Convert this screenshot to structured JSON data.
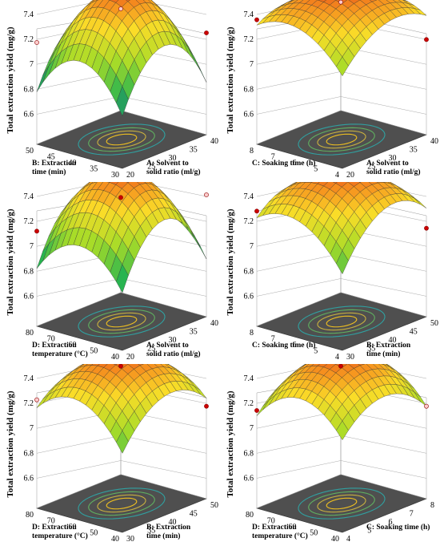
{
  "chart_data": [
    {
      "type": "surface",
      "zlabel": "Total extraction yield (mg/g)",
      "zticks": [
        "6.6",
        "6.8",
        "7",
        "7.2",
        "7.4"
      ],
      "zlim": [
        6.5,
        7.4
      ],
      "x": {
        "label": [
          "A: Solvent to",
          "solid ratio (ml/g)"
        ],
        "ticks": [
          "20",
          "25",
          "30",
          "35",
          "40"
        ],
        "lim": [
          20,
          40
        ]
      },
      "y": {
        "label": [
          "B: Extraction",
          "time (min)"
        ],
        "ticks": [
          "30",
          "35",
          "40",
          "45",
          "50"
        ],
        "lim": [
          30,
          50
        ]
      },
      "surface": {
        "center": 7.3,
        "a": 0.4,
        "b": 0.32,
        "c": 0.0
      },
      "points": [
        {
          "x": 30,
          "y": 40,
          "z": 7.33,
          "color": "#cc0000"
        },
        {
          "x": 20,
          "y": 50,
          "z": 6.95,
          "color": "#ffcccc"
        },
        {
          "x": 40,
          "y": 30,
          "z": 6.95,
          "color": "#cc0000"
        },
        {
          "x": 40,
          "y": 50,
          "z": 6.95,
          "color": "#ffcccc"
        }
      ]
    },
    {
      "type": "surface",
      "zlabel": "Total extraction yield (mg/g)",
      "zticks": [
        "6.6",
        "6.8",
        "7",
        "7.2",
        "7.4"
      ],
      "zlim": [
        6.5,
        7.4
      ],
      "x": {
        "label": [
          "A: Solvent to",
          "solid ratio (ml/g)"
        ],
        "ticks": [
          "20",
          "25",
          "30",
          "35",
          "40"
        ],
        "lim": [
          20,
          40
        ]
      },
      "y": {
        "label": [
          "C: Soaking time (h)"
        ],
        "ticks": [
          "4",
          "5",
          "6",
          "7",
          "8"
        ],
        "lim": [
          4,
          8
        ]
      },
      "surface": {
        "center": 7.3,
        "a": 0.16,
        "b": 0.16,
        "c": 0.1
      },
      "points": [
        {
          "x": 30,
          "y": 6,
          "z": 7.33,
          "color": "#cc0000"
        },
        {
          "x": 20,
          "y": 8,
          "z": 7.12,
          "color": "#cc0000"
        },
        {
          "x": 40,
          "y": 4,
          "z": 6.9,
          "color": "#cc0000"
        },
        {
          "x": 40,
          "y": 8,
          "z": 7.0,
          "color": "#ffcccc"
        }
      ]
    },
    {
      "type": "surface",
      "zlabel": "Total extraction yield (mg/g)",
      "zticks": [
        "6.6",
        "6.8",
        "7",
        "7.2",
        "7.4"
      ],
      "zlim": [
        6.5,
        7.4
      ],
      "x": {
        "label": [
          "A: Solvent to",
          "solid ratio (ml/g)"
        ],
        "ticks": [
          "20",
          "25",
          "30",
          "35",
          "40"
        ],
        "lim": [
          20,
          40
        ]
      },
      "y": {
        "label": [
          "D: Extraction",
          "temperature (°C)"
        ],
        "ticks": [
          "40",
          "50",
          "60",
          "70",
          "80"
        ],
        "lim": [
          40,
          80
        ]
      },
      "surface": {
        "center": 7.3,
        "a": 0.42,
        "b": 0.26,
        "c": 0.0
      },
      "points": [
        {
          "x": 30,
          "y": 60,
          "z": 7.33,
          "color": "#cc0000"
        },
        {
          "x": 20,
          "y": 80,
          "z": 6.9,
          "color": "#cc0000"
        },
        {
          "x": 40,
          "y": 40,
          "z": 7.1,
          "color": "#ffcccc"
        },
        {
          "x": 40,
          "y": 80,
          "z": 6.9,
          "color": "#cc0000"
        }
      ]
    },
    {
      "type": "surface",
      "zlabel": "Total extraction yield (mg/g)",
      "zticks": [
        "6.6",
        "6.8",
        "7",
        "7.2",
        "7.4"
      ],
      "zlim": [
        6.5,
        7.4
      ],
      "x": {
        "label": [
          "B: Extraction",
          "time (min)"
        ],
        "ticks": [
          "30",
          "35",
          "40",
          "45",
          "50"
        ],
        "lim": [
          30,
          50
        ]
      },
      "y": {
        "label": [
          "C: Soaking time (h)"
        ],
        "ticks": [
          "4",
          "5",
          "6",
          "7",
          "8"
        ],
        "lim": [
          4,
          8
        ]
      },
      "surface": {
        "center": 7.3,
        "a": 0.24,
        "b": 0.18,
        "c": 0.12
      },
      "points": [
        {
          "x": 40,
          "y": 6,
          "z": 7.33,
          "color": "#cc0000"
        },
        {
          "x": 30,
          "y": 8,
          "z": 7.05,
          "color": "#cc0000"
        },
        {
          "x": 50,
          "y": 4,
          "z": 6.85,
          "color": "#cc0000"
        },
        {
          "x": 50,
          "y": 8,
          "z": 7.05,
          "color": "#cc0000"
        }
      ]
    },
    {
      "type": "surface",
      "zlabel": "Total extraction yield (mg/g)",
      "zticks": [
        "6.6",
        "6.8",
        "7",
        "7.2",
        "7.4"
      ],
      "zlim": [
        6.5,
        7.4
      ],
      "x": {
        "label": [
          "B: Extraction",
          "time (min)"
        ],
        "ticks": [
          "30",
          "35",
          "40",
          "45",
          "50"
        ],
        "lim": [
          30,
          50
        ]
      },
      "y": {
        "label": [
          "D: Extraction",
          "temperature (°C)"
        ],
        "ticks": [
          "40",
          "50",
          "60",
          "70",
          "80"
        ],
        "lim": [
          40,
          80
        ]
      },
      "surface": {
        "center": 7.3,
        "a": 0.22,
        "b": 0.22,
        "c": 0.08
      },
      "points": [
        {
          "x": 40,
          "y": 60,
          "z": 7.33,
          "color": "#cc0000"
        },
        {
          "x": 30,
          "y": 80,
          "z": 7.0,
          "color": "#ffcccc"
        },
        {
          "x": 50,
          "y": 40,
          "z": 6.88,
          "color": "#cc0000"
        },
        {
          "x": 50,
          "y": 80,
          "z": 7.0,
          "color": "#cc0000"
        }
      ]
    },
    {
      "type": "surface",
      "zlabel": "Total extraction yield (mg/g)",
      "zticks": [
        "6.6",
        "6.8",
        "7",
        "7.2",
        "7.4"
      ],
      "zlim": [
        6.5,
        7.4
      ],
      "x": {
        "label": [
          "C: Soaking time (h)"
        ],
        "ticks": [
          "4",
          "5",
          "6",
          "7",
          "8"
        ],
        "lim": [
          4,
          8
        ]
      },
      "y": {
        "label": [
          "D: Extraction",
          "temperature (°C)"
        ],
        "ticks": [
          "40",
          "50",
          "60",
          "70",
          "80"
        ],
        "lim": [
          40,
          80
        ]
      },
      "surface": {
        "center": 7.3,
        "a": 0.2,
        "b": 0.22,
        "c": 0.0
      },
      "points": [
        {
          "x": 6,
          "y": 60,
          "z": 7.33,
          "color": "#cc0000"
        },
        {
          "x": 4,
          "y": 80,
          "z": 6.92,
          "color": "#cc0000"
        },
        {
          "x": 8,
          "y": 40,
          "z": 6.88,
          "color": "#ffcccc"
        },
        {
          "x": 8,
          "y": 80,
          "z": 7.0,
          "color": "#cc0000"
        }
      ]
    }
  ]
}
